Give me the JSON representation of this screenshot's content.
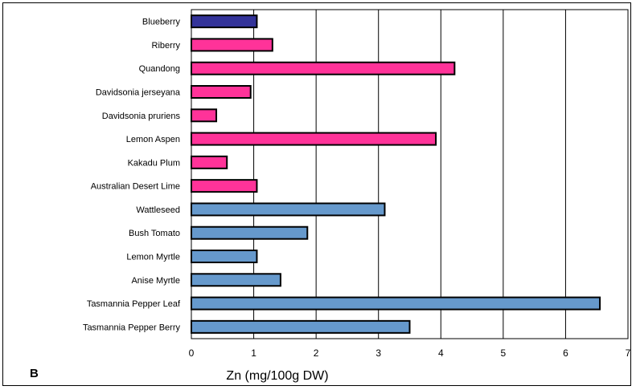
{
  "chart_data": {
    "type": "bar",
    "orientation": "horizontal",
    "panel_label": "B",
    "xlabel": "Zn (mg/100g DW)",
    "ylabel": "",
    "title": "",
    "xlim": [
      0,
      7
    ],
    "xticks": [
      0,
      1,
      2,
      3,
      4,
      5,
      6,
      7
    ],
    "grid": "vertical",
    "categories": [
      "Blueberry",
      "Riberry",
      "Quandong",
      "Davidsonia jerseyana",
      "Davidsonia pruriens",
      "Lemon Aspen",
      "Kakadu Plum",
      "Australian Desert Lime",
      "Wattleseed",
      "Bush Tomato",
      "Lemon Myrtle",
      "Anise Myrtle",
      "Tasmannia Pepper Leaf",
      "Tasmannia Pepper Berry"
    ],
    "values": [
      1.05,
      1.3,
      4.22,
      0.95,
      0.4,
      3.92,
      0.57,
      1.05,
      3.1,
      1.86,
      1.05,
      1.43,
      6.55,
      3.5
    ],
    "bar_groups": [
      "blue",
      "pink",
      "pink",
      "pink",
      "pink",
      "pink",
      "pink",
      "pink",
      "light",
      "light",
      "light",
      "light",
      "light",
      "light"
    ],
    "colors": {
      "blue": "#333399",
      "pink": "#ff3399",
      "light": "#6699cc",
      "bar_border": "#000000",
      "grid": "#000000"
    }
  }
}
